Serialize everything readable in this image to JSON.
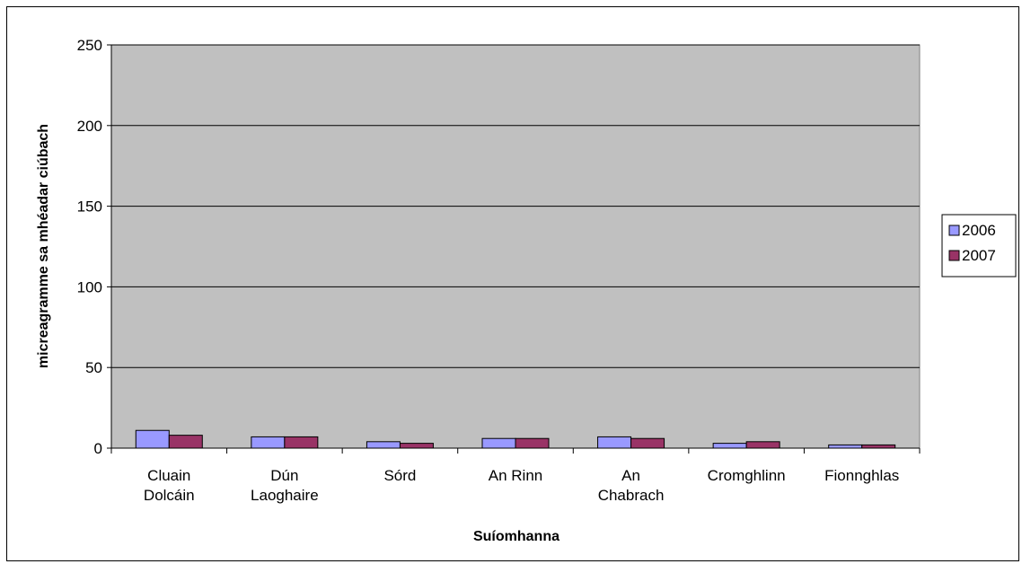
{
  "chart_data": {
    "type": "bar",
    "categories": [
      [
        "Cluain",
        "Dolcáin"
      ],
      [
        "Dún",
        "Laoghaire"
      ],
      [
        "Sórd"
      ],
      [
        "An Rinn"
      ],
      [
        "An",
        "Chabrach"
      ],
      [
        "Cromghlinn"
      ],
      [
        "Fionnghlas"
      ]
    ],
    "series": [
      {
        "name": "2006",
        "color": "#9999ff",
        "values": [
          11,
          7,
          4,
          6,
          7,
          3,
          2
        ]
      },
      {
        "name": "2007",
        "color": "#993366",
        "values": [
          8,
          7,
          3,
          6,
          6,
          4,
          2
        ]
      }
    ],
    "xlabel": "Suíomhanna",
    "ylabel": "micreagramme sa mhéadar ciúbach",
    "ylim": [
      0,
      250
    ],
    "yticks": [
      0,
      50,
      100,
      150,
      200,
      250
    ],
    "grid": true,
    "plot_background": "#c0c0c0",
    "legend": {
      "position": "right"
    }
  }
}
